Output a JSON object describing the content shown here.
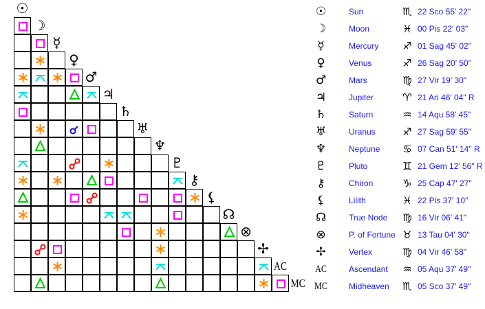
{
  "planets": [
    {
      "name": "Sun",
      "glyph": "☉",
      "sign_glyph": "♏",
      "position": "22 Sco 55' 22\""
    },
    {
      "name": "Moon",
      "glyph": "☽",
      "sign_glyph": "♓",
      "position": "00 Pis 22' 03\""
    },
    {
      "name": "Mercury",
      "glyph": "☿",
      "sign_glyph": "♐",
      "position": "01 Sag 45' 02\""
    },
    {
      "name": "Venus",
      "glyph": "♀",
      "sign_glyph": "♐",
      "position": "26 Sag 20' 50\""
    },
    {
      "name": "Mars",
      "glyph": "♂",
      "sign_glyph": "♍",
      "position": "27 Vir 19' 30\""
    },
    {
      "name": "Jupiter",
      "glyph": "♃",
      "sign_glyph": "♈",
      "position": "21 Ari 46' 04\" R"
    },
    {
      "name": "Saturn",
      "glyph": "♄",
      "sign_glyph": "♒",
      "position": "14 Aqu 58' 45\""
    },
    {
      "name": "Uranus",
      "glyph": "♅",
      "sign_glyph": "♐",
      "position": "27 Sag 59' 55\""
    },
    {
      "name": "Neptune",
      "glyph": "♆",
      "sign_glyph": "♋",
      "position": "07 Can 51' 14\" R"
    },
    {
      "name": "Pluto",
      "glyph": "♇",
      "sign_glyph": "♊",
      "position": "21 Gem 12' 56\" R"
    },
    {
      "name": "Chiron",
      "glyph": "⚷",
      "sign_glyph": "♑",
      "position": "25 Cap 47' 27\""
    },
    {
      "name": "Lilith",
      "glyph": "⚸",
      "sign_glyph": "♓",
      "position": "22 Pis 37' 10\""
    },
    {
      "name": "True Node",
      "glyph": "☊",
      "sign_glyph": "♍",
      "position": "16 Vir 06' 41\""
    },
    {
      "name": "P. of Fortune",
      "glyph": "⊗",
      "sign_glyph": "♉",
      "position": "13 Tau 04' 30\""
    },
    {
      "name": "Vertex",
      "glyph": "✢",
      "sign_glyph": "♍",
      "position": "04 Vir 46' 58\""
    },
    {
      "name": "Ascendant",
      "glyph": "AC",
      "sign_glyph": "♒",
      "position": "05 Aqu 37' 49\""
    },
    {
      "name": "Midheaven",
      "glyph": "MC",
      "sign_glyph": "♏",
      "position": "05 Sco 37' 49\""
    }
  ],
  "aspect_colors": {
    "conjunction": "#1010e0",
    "opposition": "#ee1111",
    "square": "#ff00ff",
    "trine": "#00cc00",
    "sextile": "#ff8800",
    "quincunx": "#00e0e0"
  },
  "aspects": [
    {
      "a": 1,
      "b": 0,
      "type": "square"
    },
    {
      "a": 2,
      "b": 1,
      "type": "square"
    },
    {
      "a": 3,
      "b": 1,
      "type": "sextile"
    },
    {
      "a": 4,
      "b": 0,
      "type": "sextile"
    },
    {
      "a": 4,
      "b": 1,
      "type": "quincunx"
    },
    {
      "a": 4,
      "b": 2,
      "type": "sextile"
    },
    {
      "a": 4,
      "b": 3,
      "type": "square"
    },
    {
      "a": 5,
      "b": 0,
      "type": "quincunx"
    },
    {
      "a": 5,
      "b": 3,
      "type": "trine"
    },
    {
      "a": 5,
      "b": 4,
      "type": "quincunx"
    },
    {
      "a": 6,
      "b": 0,
      "type": "square"
    },
    {
      "a": 7,
      "b": 1,
      "type": "sextile"
    },
    {
      "a": 7,
      "b": 3,
      "type": "conjunction"
    },
    {
      "a": 7,
      "b": 4,
      "type": "square"
    },
    {
      "a": 8,
      "b": 1,
      "type": "trine"
    },
    {
      "a": 9,
      "b": 0,
      "type": "quincunx"
    },
    {
      "a": 9,
      "b": 3,
      "type": "opposition"
    },
    {
      "a": 9,
      "b": 5,
      "type": "sextile"
    },
    {
      "a": 10,
      "b": 0,
      "type": "sextile"
    },
    {
      "a": 10,
      "b": 2,
      "type": "sextile"
    },
    {
      "a": 10,
      "b": 4,
      "type": "trine"
    },
    {
      "a": 10,
      "b": 5,
      "type": "square"
    },
    {
      "a": 10,
      "b": 9,
      "type": "quincunx"
    },
    {
      "a": 11,
      "b": 0,
      "type": "trine"
    },
    {
      "a": 11,
      "b": 3,
      "type": "square"
    },
    {
      "a": 11,
      "b": 4,
      "type": "opposition"
    },
    {
      "a": 11,
      "b": 7,
      "type": "square"
    },
    {
      "a": 11,
      "b": 9,
      "type": "square"
    },
    {
      "a": 11,
      "b": 10,
      "type": "sextile"
    },
    {
      "a": 12,
      "b": 0,
      "type": "sextile"
    },
    {
      "a": 12,
      "b": 5,
      "type": "quincunx"
    },
    {
      "a": 12,
      "b": 6,
      "type": "quincunx"
    },
    {
      "a": 12,
      "b": 9,
      "type": "square"
    },
    {
      "a": 13,
      "b": 6,
      "type": "square"
    },
    {
      "a": 13,
      "b": 8,
      "type": "sextile"
    },
    {
      "a": 13,
      "b": 12,
      "type": "trine"
    },
    {
      "a": 14,
      "b": 1,
      "type": "opposition"
    },
    {
      "a": 14,
      "b": 2,
      "type": "square"
    },
    {
      "a": 14,
      "b": 8,
      "type": "sextile"
    },
    {
      "a": 15,
      "b": 2,
      "type": "sextile"
    },
    {
      "a": 15,
      "b": 8,
      "type": "quincunx"
    },
    {
      "a": 15,
      "b": 14,
      "type": "quincunx"
    },
    {
      "a": 16,
      "b": 1,
      "type": "trine"
    },
    {
      "a": 16,
      "b": 8,
      "type": "trine"
    },
    {
      "a": 16,
      "b": 14,
      "type": "sextile"
    },
    {
      "a": 16,
      "b": 15,
      "type": "square"
    }
  ]
}
